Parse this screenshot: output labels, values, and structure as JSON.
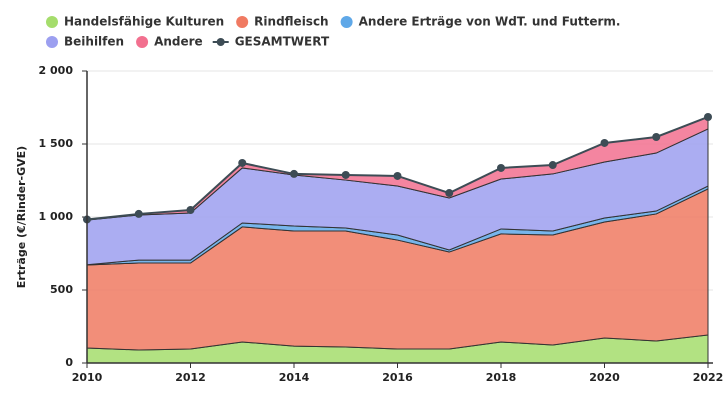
{
  "chart_data": {
    "type": "area",
    "stacked": true,
    "y_label": "Erträge (€/Rinder-GVE)",
    "x": [
      2010,
      2011,
      2012,
      2013,
      2014,
      2015,
      2016,
      2017,
      2018,
      2019,
      2020,
      2021,
      2022
    ],
    "xlim": [
      2010,
      2022
    ],
    "xticks": [
      2010,
      2012,
      2014,
      2016,
      2018,
      2020,
      2022
    ],
    "ylim": [
      0,
      2000
    ],
    "yticks": [
      0,
      500,
      {
        "value": 1000,
        "label": "1 000"
      },
      {
        "value": 1500,
        "label": "1 500"
      },
      {
        "value": 2000,
        "label": "2 000"
      }
    ],
    "grid": true,
    "series": [
      {
        "name": "Handelsfähige Kulturen",
        "color": "#a5dd6c",
        "values": [
          103,
          89,
          96,
          144,
          116,
          110,
          96,
          96,
          144,
          123,
          171,
          151,
          192
        ]
      },
      {
        "name": "Rindfleisch",
        "color": "#f07a62",
        "values": [
          568,
          596,
          589,
          788,
          788,
          794,
          746,
          664,
          740,
          754,
          795,
          870,
          1000
        ]
      },
      {
        "name": "Andere Erträge von WdT. und Futterm.",
        "color": "#5fa8e8",
        "values": [
          2,
          20,
          20,
          27,
          34,
          21,
          35,
          14,
          34,
          27,
          27,
          20,
          20
        ]
      },
      {
        "name": "Beihilfen",
        "color": "#9c9ff0",
        "values": [
          306,
          309,
          322,
          377,
          350,
          328,
          335,
          356,
          342,
          391,
          384,
          397,
          391
        ]
      },
      {
        "name": "Andere",
        "color": "#f2708f",
        "values": [
          4,
          7,
          21,
          34,
          7,
          35,
          69,
          34,
          76,
          61,
          130,
          110,
          82
        ]
      },
      {
        "name": "GESAMTWERT",
        "type": "line",
        "color": "#3d4c55",
        "values": [
          983,
          1021,
          1048,
          1370,
          1295,
          1288,
          1281,
          1164,
          1336,
          1356,
          1507,
          1548,
          1685
        ]
      }
    ]
  }
}
